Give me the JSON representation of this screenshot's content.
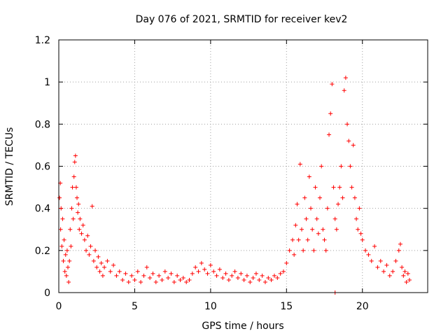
{
  "chart_data": {
    "type": "scatter",
    "title": "Day 076 of 2021, SRMTID for receiver kev2",
    "xlabel": "GPS time / hours",
    "ylabel": "SRMTID / TECUs",
    "xlim": [
      0,
      24.3
    ],
    "ylim": [
      0,
      1.2
    ],
    "x_ticks": [
      0,
      5,
      10,
      15,
      20
    ],
    "x_tick_labels": [
      "0",
      "5",
      "10",
      "15",
      "20"
    ],
    "y_ticks": [
      0,
      0.2,
      0.4,
      0.6,
      0.8,
      1.0,
      1.2
    ],
    "y_tick_labels": [
      "0",
      "0.2",
      "0.4",
      "0.6",
      "0.8",
      "1",
      "1.2"
    ],
    "grid": true,
    "marker": "plus",
    "color": "#ff0000",
    "series": [
      {
        "name": "SRMTID kev2",
        "points": [
          [
            0.05,
            0.45
          ],
          [
            0.1,
            0.52
          ],
          [
            0.12,
            0.3
          ],
          [
            0.15,
            0.4
          ],
          [
            0.2,
            0.22
          ],
          [
            0.25,
            0.35
          ],
          [
            0.3,
            0.15
          ],
          [
            0.35,
            0.25
          ],
          [
            0.4,
            0.1
          ],
          [
            0.45,
            0.18
          ],
          [
            0.5,
            0.08
          ],
          [
            0.55,
            0.2
          ],
          [
            0.6,
            0.12
          ],
          [
            0.65,
            0.05
          ],
          [
            0.7,
            0.15
          ],
          [
            0.75,
            0.3
          ],
          [
            0.8,
            0.22
          ],
          [
            0.85,
            0.4
          ],
          [
            0.9,
            0.5
          ],
          [
            0.95,
            0.35
          ],
          [
            1.0,
            0.55
          ],
          [
            1.05,
            0.62
          ],
          [
            1.1,
            0.65
          ],
          [
            1.15,
            0.5
          ],
          [
            1.2,
            0.45
          ],
          [
            1.25,
            0.38
          ],
          [
            1.3,
            0.42
          ],
          [
            1.35,
            0.3
          ],
          [
            1.4,
            0.35
          ],
          [
            1.5,
            0.28
          ],
          [
            1.6,
            0.32
          ],
          [
            1.7,
            0.25
          ],
          [
            1.8,
            0.2
          ],
          [
            1.9,
            0.27
          ],
          [
            2.0,
            0.18
          ],
          [
            2.1,
            0.22
          ],
          [
            2.2,
            0.41
          ],
          [
            2.3,
            0.15
          ],
          [
            2.4,
            0.2
          ],
          [
            2.5,
            0.12
          ],
          [
            2.6,
            0.17
          ],
          [
            2.7,
            0.1
          ],
          [
            2.8,
            0.14
          ],
          [
            2.9,
            0.08
          ],
          [
            3.0,
            0.12
          ],
          [
            3.2,
            0.15
          ],
          [
            3.4,
            0.1
          ],
          [
            3.6,
            0.13
          ],
          [
            3.8,
            0.08
          ],
          [
            4.0,
            0.1
          ],
          [
            4.2,
            0.06
          ],
          [
            4.4,
            0.09
          ],
          [
            4.6,
            0.05
          ],
          [
            4.8,
            0.08
          ],
          [
            5.0,
            0.06
          ],
          [
            5.2,
            0.1
          ],
          [
            5.4,
            0.05
          ],
          [
            5.6,
            0.08
          ],
          [
            5.8,
            0.12
          ],
          [
            6.0,
            0.07
          ],
          [
            6.2,
            0.09
          ],
          [
            6.4,
            0.05
          ],
          [
            6.6,
            0.08
          ],
          [
            6.8,
            0.06
          ],
          [
            7.0,
            0.1
          ],
          [
            7.2,
            0.07
          ],
          [
            7.4,
            0.09
          ],
          [
            7.6,
            0.05
          ],
          [
            7.8,
            0.08
          ],
          [
            8.0,
            0.06
          ],
          [
            8.2,
            0.07
          ],
          [
            8.4,
            0.05
          ],
          [
            8.6,
            0.06
          ],
          [
            8.8,
            0.09
          ],
          [
            9.0,
            0.12
          ],
          [
            9.2,
            0.1
          ],
          [
            9.4,
            0.14
          ],
          [
            9.6,
            0.11
          ],
          [
            9.8,
            0.09
          ],
          [
            10.0,
            0.13
          ],
          [
            10.2,
            0.1
          ],
          [
            10.4,
            0.08
          ],
          [
            10.6,
            0.11
          ],
          [
            10.8,
            0.07
          ],
          [
            11.0,
            0.09
          ],
          [
            11.2,
            0.06
          ],
          [
            11.4,
            0.08
          ],
          [
            11.6,
            0.1
          ],
          [
            11.8,
            0.07
          ],
          [
            12.0,
            0.09
          ],
          [
            12.2,
            0.06
          ],
          [
            12.4,
            0.08
          ],
          [
            12.6,
            0.05
          ],
          [
            12.8,
            0.07
          ],
          [
            13.0,
            0.09
          ],
          [
            13.2,
            0.06
          ],
          [
            13.4,
            0.08
          ],
          [
            13.6,
            0.05
          ],
          [
            13.8,
            0.07
          ],
          [
            14.0,
            0.06
          ],
          [
            14.2,
            0.08
          ],
          [
            14.4,
            0.07
          ],
          [
            14.6,
            0.09
          ],
          [
            14.8,
            0.1
          ],
          [
            15.0,
            0.14
          ],
          [
            15.2,
            0.2
          ],
          [
            15.4,
            0.25
          ],
          [
            15.5,
            0.18
          ],
          [
            15.6,
            0.32
          ],
          [
            15.7,
            0.42
          ],
          [
            15.8,
            0.25
          ],
          [
            15.9,
            0.61
          ],
          [
            16.0,
            0.3
          ],
          [
            16.1,
            0.2
          ],
          [
            16.2,
            0.45
          ],
          [
            16.3,
            0.35
          ],
          [
            16.4,
            0.25
          ],
          [
            16.5,
            0.55
          ],
          [
            16.6,
            0.4
          ],
          [
            16.7,
            0.3
          ],
          [
            16.8,
            0.2
          ],
          [
            16.9,
            0.5
          ],
          [
            17.0,
            0.35
          ],
          [
            17.1,
            0.28
          ],
          [
            17.2,
            0.45
          ],
          [
            17.3,
            0.6
          ],
          [
            17.4,
            0.3
          ],
          [
            17.5,
            0.25
          ],
          [
            17.6,
            0.2
          ],
          [
            17.7,
            0.4
          ],
          [
            17.8,
            0.75
          ],
          [
            17.9,
            0.85
          ],
          [
            18.0,
            0.99
          ],
          [
            18.1,
            0.5
          ],
          [
            18.2,
            0.35
          ],
          [
            18.3,
            0.3
          ],
          [
            18.4,
            0.42
          ],
          [
            18.5,
            0.5
          ],
          [
            18.6,
            0.6
          ],
          [
            18.7,
            0.45
          ],
          [
            18.8,
            0.96
          ],
          [
            18.9,
            1.02
          ],
          [
            19.0,
            0.8
          ],
          [
            19.1,
            0.72
          ],
          [
            19.2,
            0.6
          ],
          [
            19.3,
            0.5
          ],
          [
            19.4,
            0.7
          ],
          [
            19.5,
            0.45
          ],
          [
            19.6,
            0.35
          ],
          [
            19.7,
            0.3
          ],
          [
            19.8,
            0.4
          ],
          [
            19.9,
            0.28
          ],
          [
            20.0,
            0.25
          ],
          [
            20.2,
            0.2
          ],
          [
            20.4,
            0.18
          ],
          [
            20.6,
            0.15
          ],
          [
            20.8,
            0.22
          ],
          [
            21.0,
            0.12
          ],
          [
            21.2,
            0.15
          ],
          [
            21.4,
            0.1
          ],
          [
            21.6,
            0.13
          ],
          [
            21.8,
            0.08
          ],
          [
            22.0,
            0.1
          ],
          [
            22.2,
            0.15
          ],
          [
            22.4,
            0.2
          ],
          [
            22.5,
            0.23
          ],
          [
            22.6,
            0.12
          ],
          [
            22.7,
            0.08
          ],
          [
            22.8,
            0.1
          ],
          [
            22.9,
            0.05
          ],
          [
            23.0,
            0.09
          ],
          [
            23.1,
            0.06
          ],
          [
            18.2,
            0.0
          ]
        ]
      }
    ]
  }
}
